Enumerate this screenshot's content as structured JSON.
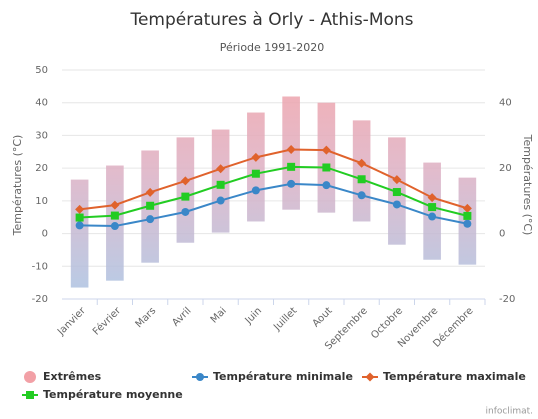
{
  "chart_data": {
    "type": "line",
    "title": "Températures à Orly - Athis-Mons",
    "subtitle": "Période 1991-2020",
    "y_label": "Températures (°C)",
    "y2_label": "Températures (°C)",
    "credit": "infoclimat.",
    "categories": [
      "Janvier",
      "Février",
      "Mars",
      "Avril",
      "Mai",
      "Juin",
      "Juillet",
      "Aout",
      "Septembre",
      "Octobre",
      "Novembre",
      "Décembre"
    ],
    "ylim": [
      -20,
      50
    ],
    "yticks": [
      -20,
      -10,
      0,
      10,
      20,
      30,
      40,
      50
    ],
    "y2lim": [
      -20,
      50
    ],
    "y2ticks": [
      -20,
      0,
      20,
      40
    ],
    "grid": true,
    "series": [
      {
        "name": "Extrêmes",
        "type": "range",
        "color": "#f2a0a6",
        "low": [
          -16.5,
          -14.4,
          -8.9,
          -2.8,
          0.3,
          3.7,
          7.3,
          6.4,
          3.7,
          -3.4,
          -8.0,
          -9.5
        ],
        "high": [
          16.5,
          20.8,
          25.4,
          29.4,
          31.8,
          37.0,
          41.9,
          40.0,
          34.6,
          29.4,
          21.7,
          17.1
        ]
      },
      {
        "name": "Température minimale",
        "color": "#3a87c8",
        "marker": "circle",
        "values": [
          2.5,
          2.3,
          4.4,
          6.6,
          10.1,
          13.2,
          15.2,
          14.8,
          11.7,
          8.9,
          5.2,
          3.0
        ]
      },
      {
        "name": "Température maximale",
        "color": "#e0622c",
        "marker": "diamond",
        "values": [
          7.4,
          8.7,
          12.6,
          16.1,
          19.8,
          23.3,
          25.7,
          25.5,
          21.5,
          16.5,
          11.0,
          7.7
        ]
      },
      {
        "name": "Température moyenne",
        "color": "#22cc22",
        "marker": "square",
        "values": [
          4.9,
          5.5,
          8.5,
          11.3,
          14.9,
          18.3,
          20.4,
          20.2,
          16.6,
          12.7,
          8.1,
          5.4
        ]
      }
    ]
  }
}
